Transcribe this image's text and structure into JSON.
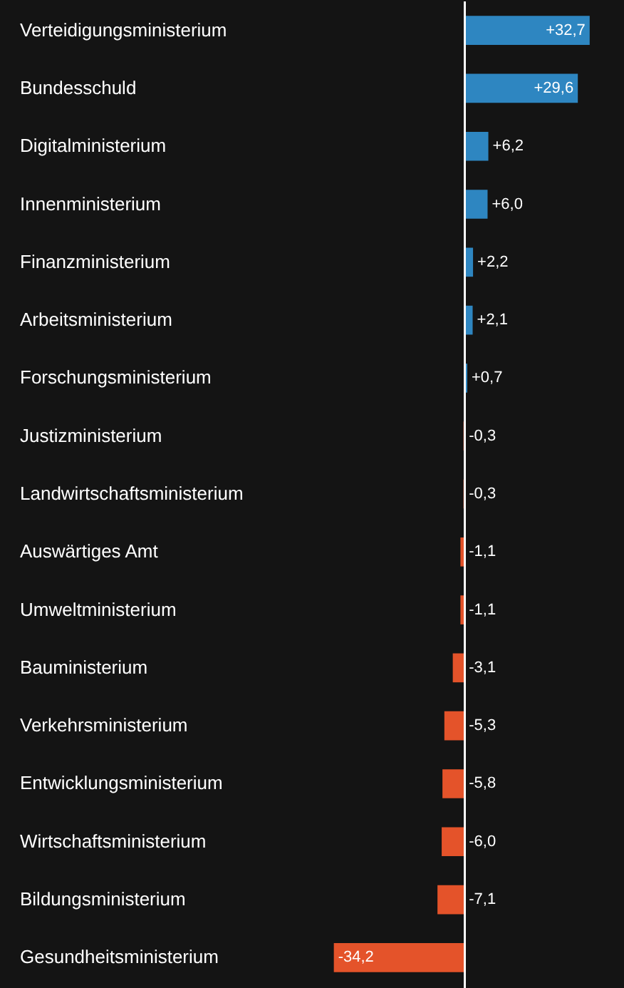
{
  "chart_data": {
    "type": "bar",
    "orientation": "horizontal",
    "value_labels": [
      "+32,7",
      "+29,6",
      "+6,2",
      "+6,0",
      "+2,2",
      "+2,1",
      "+0,7",
      "-0,3",
      "-0,3",
      "-1,1",
      "-1,1",
      "-3,1",
      "-5,3",
      "-5,8",
      "-6,0",
      "-7,1",
      "-34,2"
    ],
    "categories": [
      "Verteidigungsministerium",
      "Bundesschuld",
      "Digitalministerium",
      "Innenministerium",
      "Finanzministerium",
      "Arbeitsministerium",
      "Forschungsministerium",
      "Justizministerium",
      "Landwirtschaftsministerium",
      "Auswärtiges Amt",
      "Umweltministerium",
      "Bauministerium",
      "Verkehrsministerium",
      "Entwicklungsministerium",
      "Wirtschaftsministerium",
      "Bildungsministerium",
      "Gesundheitsministerium"
    ],
    "values": [
      32.7,
      29.6,
      6.2,
      6.0,
      2.2,
      2.1,
      0.7,
      -0.3,
      -0.3,
      -1.1,
      -1.1,
      -3.1,
      -5.3,
      -5.8,
      -6.0,
      -7.1,
      -34.2
    ],
    "colors": [
      "#2e86c1",
      "#2e86c1",
      "#2e86c1",
      "#2e86c1",
      "#2e86c1",
      "#2e86c1",
      "#2e86c1",
      "#e4532a",
      "#e4532a",
      "#e4532a",
      "#e4532a",
      "#e4532a",
      "#e4532a",
      "#e4532a",
      "#e4532a",
      "#e4532a",
      "#e4532a"
    ]
  }
}
